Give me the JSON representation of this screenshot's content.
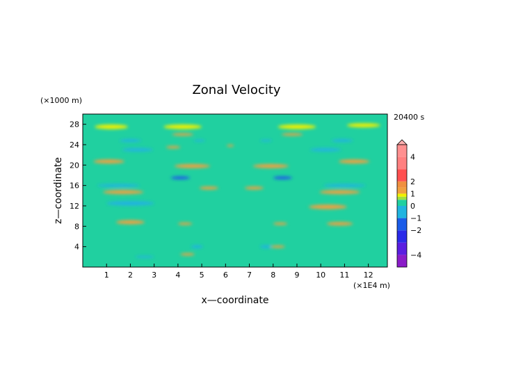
{
  "chart_data": {
    "type": "heatmap",
    "title": "Zonal Velocity",
    "time_label": "20400 s",
    "xlabel": "x—coordinate",
    "ylabel": "z—coordinate",
    "x_unit": "(×1E4 m)",
    "y_unit": "(×1000 m)",
    "xlim": [
      0,
      12.8
    ],
    "ylim": [
      0,
      30
    ],
    "x_ticks": [
      1,
      2,
      3,
      4,
      5,
      6,
      7,
      8,
      9,
      10,
      11,
      12
    ],
    "y_ticks": [
      4,
      8,
      12,
      16,
      20,
      24,
      28
    ],
    "colorbar": {
      "tick_values": [
        4,
        2,
        1,
        0,
        -1,
        -2,
        -4
      ],
      "tick_labels": [
        "4",
        "2",
        "1",
        "0",
        "−1",
        "−2",
        "−4"
      ],
      "range": [
        -5,
        5
      ],
      "colors": {
        "-5": "#8a1cc8",
        "-4": "#5a1ee0",
        "-3": "#2a2ae8",
        "-2": "#1a5ce8",
        "-1": "#20b4e0",
        "0": "#20d0a0",
        "0.5": "#a0e040",
        "0.75": "#f0f000",
        "1": "#f0a040",
        "1.5": "#f09040",
        "2": "#ff5050",
        "3": "#ff8080",
        "4": "#ff9090",
        "5": "#ffb0b0"
      }
    },
    "background_value": 0.4,
    "features": [
      {
        "x": 1.2,
        "z": 27.5,
        "w": 1.4,
        "h": 0.9,
        "v": 0.85
      },
      {
        "x": 4.2,
        "z": 27.5,
        "w": 1.6,
        "h": 0.9,
        "v": 0.85
      },
      {
        "x": 9.0,
        "z": 27.5,
        "w": 1.6,
        "h": 0.9,
        "v": 0.85
      },
      {
        "x": 11.8,
        "z": 27.8,
        "w": 1.4,
        "h": 0.8,
        "v": 0.85
      },
      {
        "x": 4.2,
        "z": 26.0,
        "w": 0.9,
        "h": 0.5,
        "v": 1.2
      },
      {
        "x": 8.8,
        "z": 26.0,
        "w": 0.9,
        "h": 0.5,
        "v": 1.2
      },
      {
        "x": 2.0,
        "z": 24.8,
        "w": 0.9,
        "h": 0.6,
        "v": -0.6
      },
      {
        "x": 4.9,
        "z": 24.8,
        "w": 0.5,
        "h": 0.4,
        "v": -0.6
      },
      {
        "x": 7.7,
        "z": 24.8,
        "w": 0.5,
        "h": 0.4,
        "v": -0.6
      },
      {
        "x": 10.9,
        "z": 24.8,
        "w": 0.9,
        "h": 0.6,
        "v": -0.6
      },
      {
        "x": 2.3,
        "z": 23.0,
        "w": 1.3,
        "h": 0.7,
        "v": -0.8
      },
      {
        "x": 10.2,
        "z": 23.0,
        "w": 1.3,
        "h": 0.7,
        "v": -0.8
      },
      {
        "x": 3.8,
        "z": 23.5,
        "w": 0.6,
        "h": 0.5,
        "v": 1.2
      },
      {
        "x": 6.2,
        "z": 23.8,
        "w": 0.3,
        "h": 0.4,
        "v": 1.3
      },
      {
        "x": 1.1,
        "z": 20.7,
        "w": 1.3,
        "h": 0.8,
        "v": 1.3
      },
      {
        "x": 11.4,
        "z": 20.7,
        "w": 1.3,
        "h": 0.8,
        "v": 1.3
      },
      {
        "x": 4.6,
        "z": 19.8,
        "w": 1.5,
        "h": 0.8,
        "v": 1.2
      },
      {
        "x": 7.9,
        "z": 19.8,
        "w": 1.5,
        "h": 0.8,
        "v": 1.2
      },
      {
        "x": 1.5,
        "z": 16.0,
        "w": 1.8,
        "h": 0.6,
        "v": -0.8
      },
      {
        "x": 11.0,
        "z": 16.0,
        "w": 1.8,
        "h": 0.6,
        "v": -0.8
      },
      {
        "x": 4.1,
        "z": 17.5,
        "w": 0.8,
        "h": 0.6,
        "v": -1.1
      },
      {
        "x": 8.4,
        "z": 17.5,
        "w": 0.8,
        "h": 0.6,
        "v": -1.1
      },
      {
        "x": 1.7,
        "z": 14.7,
        "w": 1.7,
        "h": 0.8,
        "v": 1.3
      },
      {
        "x": 10.8,
        "z": 14.7,
        "w": 1.7,
        "h": 0.8,
        "v": 1.3
      },
      {
        "x": 5.3,
        "z": 15.5,
        "w": 0.8,
        "h": 0.6,
        "v": 1.2
      },
      {
        "x": 7.2,
        "z": 15.5,
        "w": 0.8,
        "h": 0.6,
        "v": 1.2
      },
      {
        "x": 2.0,
        "z": 12.5,
        "w": 2.0,
        "h": 0.9,
        "v": -0.8
      },
      {
        "x": 10.3,
        "z": 11.8,
        "w": 1.6,
        "h": 0.9,
        "v": 1.3
      },
      {
        "x": 2.0,
        "z": 8.8,
        "w": 1.2,
        "h": 0.8,
        "v": 1.2
      },
      {
        "x": 10.8,
        "z": 8.5,
        "w": 1.1,
        "h": 0.7,
        "v": 1.2
      },
      {
        "x": 4.3,
        "z": 8.5,
        "w": 0.6,
        "h": 0.5,
        "v": 1.2
      },
      {
        "x": 8.3,
        "z": 8.5,
        "w": 0.6,
        "h": 0.5,
        "v": 1.2
      },
      {
        "x": 4.8,
        "z": 4.0,
        "w": 0.5,
        "h": 0.6,
        "v": -0.8
      },
      {
        "x": 7.7,
        "z": 4.0,
        "w": 0.5,
        "h": 0.6,
        "v": -0.8
      },
      {
        "x": 4.4,
        "z": 2.5,
        "w": 0.6,
        "h": 0.5,
        "v": 1.2
      },
      {
        "x": 8.2,
        "z": 4.0,
        "w": 0.6,
        "h": 0.5,
        "v": 1.2
      },
      {
        "x": 2.6,
        "z": 2.0,
        "w": 0.8,
        "h": 0.4,
        "v": -0.7
      }
    ]
  }
}
